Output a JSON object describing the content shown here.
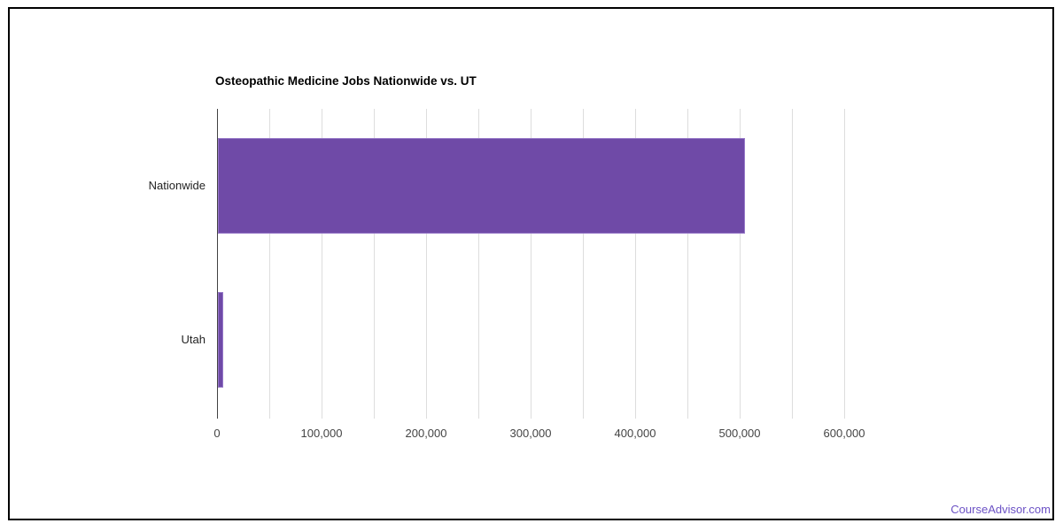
{
  "page": {
    "watermark": "CourseAdvisor.com",
    "watermark_color": "#6b51c5"
  },
  "chart_data": {
    "type": "bar",
    "orientation": "horizontal",
    "title": "Osteopathic Medicine Jobs Nationwide vs. UT",
    "categories": [
      "Nationwide",
      "Utah"
    ],
    "values": [
      504000,
      5000
    ],
    "xlabel": "",
    "ylabel": "",
    "xlim": [
      0,
      631000
    ],
    "x_tick_values": [
      0,
      100000,
      200000,
      300000,
      400000,
      500000,
      600000
    ],
    "x_tick_labels": [
      "0",
      "100,000",
      "200,000",
      "300,000",
      "400,000",
      "500,000",
      "600,000"
    ],
    "gridline_interval": 50000,
    "gridline_max": 600000,
    "grid": true,
    "legend": "none",
    "bar_color": "#6f4aa7",
    "bar_stroke_color": "#9678c8",
    "gridline_color": "#dddddd",
    "axis_line_color": "#424242",
    "tick_label_color": "#444444",
    "category_label_color": "#222222"
  }
}
